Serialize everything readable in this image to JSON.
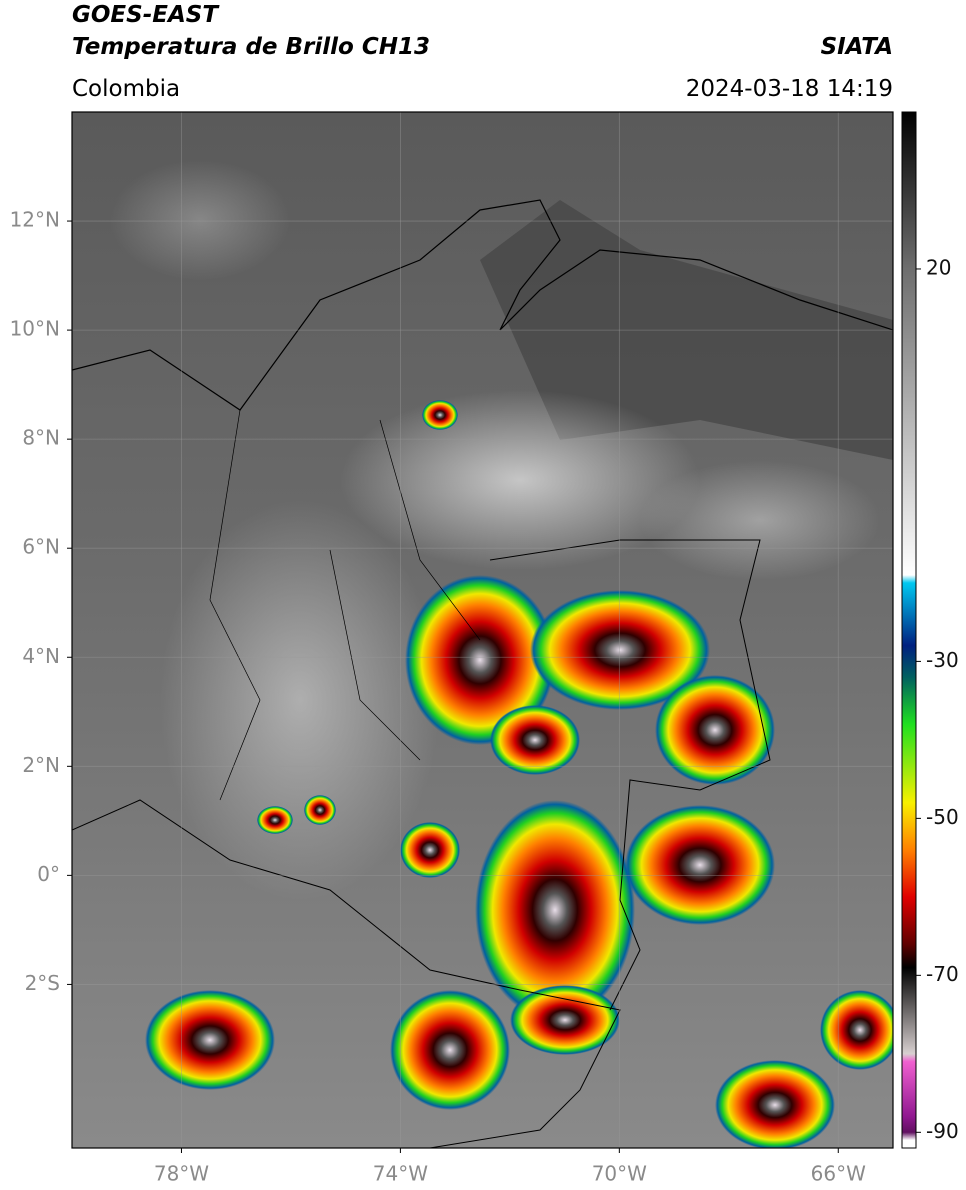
{
  "header": {
    "title": "GOES-EAST",
    "subtitle": "Temperatura de Brillo CH13",
    "brand": "SIATA",
    "region": "Colombia",
    "timestamp": "2024-03-18 14:19"
  },
  "map": {
    "xlim": [
      -80,
      -65
    ],
    "ylim": [
      -5,
      14
    ],
    "xticks": [
      {
        "value": -78,
        "label": "78°W"
      },
      {
        "value": -74,
        "label": "74°W"
      },
      {
        "value": -70,
        "label": "70°W"
      },
      {
        "value": -66,
        "label": "66°W"
      }
    ],
    "yticks": [
      {
        "value": 12,
        "label": "12°N"
      },
      {
        "value": 10,
        "label": "10°N"
      },
      {
        "value": 8,
        "label": "8°N"
      },
      {
        "value": 6,
        "label": "6°N"
      },
      {
        "value": 4,
        "label": "4°N"
      },
      {
        "value": 2,
        "label": "2°N"
      },
      {
        "value": 0,
        "label": "0°"
      },
      {
        "value": -2,
        "label": "2°S"
      }
    ],
    "grid": true
  },
  "colorbar": {
    "lim": [
      -92,
      40
    ],
    "ticks": [
      20,
      -30,
      -50,
      -70,
      -90
    ],
    "stops": [
      {
        "value": 40,
        "color": "#000000"
      },
      {
        "value": 20,
        "color": "#6e6e6e"
      },
      {
        "value": -19,
        "color": "#ffffff"
      },
      {
        "value": -20,
        "color": "#00c8f0"
      },
      {
        "value": -28,
        "color": "#002080"
      },
      {
        "value": -32,
        "color": "#006060"
      },
      {
        "value": -38,
        "color": "#20e020"
      },
      {
        "value": -48,
        "color": "#f8f000"
      },
      {
        "value": -54,
        "color": "#ff8000"
      },
      {
        "value": -60,
        "color": "#e00000"
      },
      {
        "value": -66,
        "color": "#600000"
      },
      {
        "value": -69,
        "color": "#000000"
      },
      {
        "value": -80,
        "color": "#d8d0d0"
      },
      {
        "value": -81,
        "color": "#f060d0"
      },
      {
        "value": -88,
        "color": "#901890"
      },
      {
        "value": -90,
        "color": "#601060"
      },
      {
        "value": -91,
        "color": "#ffffff"
      }
    ]
  }
}
